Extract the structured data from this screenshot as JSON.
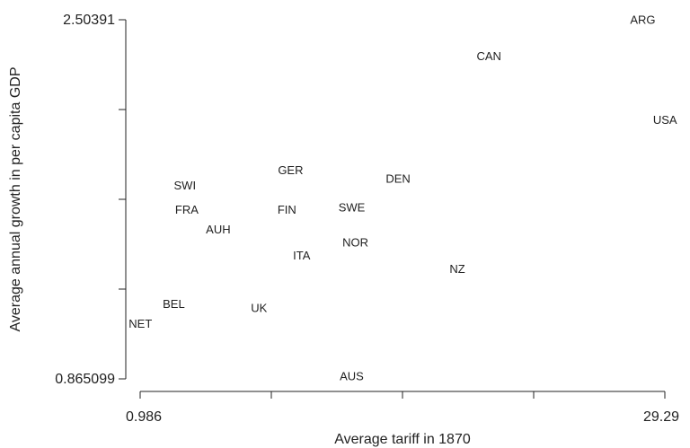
{
  "chart_data": {
    "type": "scatter",
    "title": "",
    "xlabel": "Average tariff in 1870",
    "ylabel": "Average annual growth in per capita GDP",
    "xlim": [
      0.986,
      29.29
    ],
    "ylim": [
      0.865099,
      2.50391
    ],
    "x_tick_labels": [
      "0.986",
      "29.29"
    ],
    "y_tick_labels": [
      "2.50391",
      "0.865099"
    ],
    "grid": false,
    "points": [
      {
        "label": "ARG",
        "x": 28.1,
        "y": 2.505
      },
      {
        "label": "CAN",
        "x": 19.8,
        "y": 2.34
      },
      {
        "label": "USA",
        "x": 29.3,
        "y": 2.05
      },
      {
        "label": "DEN",
        "x": 14.9,
        "y": 1.78
      },
      {
        "label": "GER",
        "x": 9.1,
        "y": 1.82
      },
      {
        "label": "SWI",
        "x": 3.4,
        "y": 1.75
      },
      {
        "label": "FRA",
        "x": 3.5,
        "y": 1.64
      },
      {
        "label": "FIN",
        "x": 8.9,
        "y": 1.64
      },
      {
        "label": "SWE",
        "x": 12.4,
        "y": 1.65
      },
      {
        "label": "AUH",
        "x": 5.2,
        "y": 1.55
      },
      {
        "label": "NOR",
        "x": 12.6,
        "y": 1.49
      },
      {
        "label": "ITA",
        "x": 9.7,
        "y": 1.43
      },
      {
        "label": "NZ",
        "x": 18.1,
        "y": 1.37
      },
      {
        "label": "BEL",
        "x": 2.8,
        "y": 1.21
      },
      {
        "label": "UK",
        "x": 7.4,
        "y": 1.19
      },
      {
        "label": "NET",
        "x": 1.0,
        "y": 1.12
      },
      {
        "label": "AUS",
        "x": 12.4,
        "y": 0.88
      }
    ]
  }
}
